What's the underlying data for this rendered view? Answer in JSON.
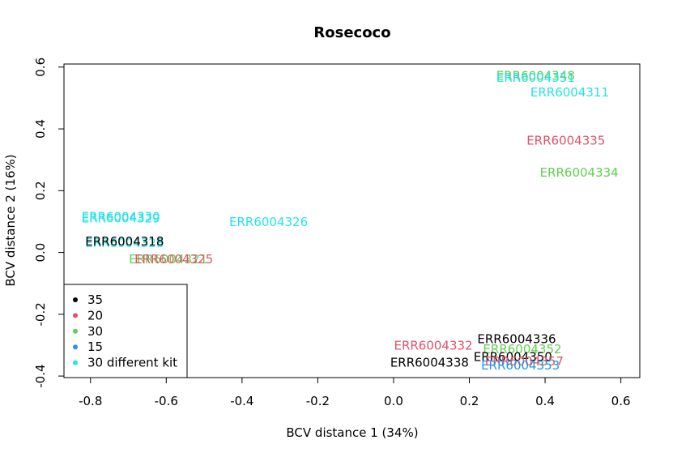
{
  "chart_data": {
    "type": "scatter",
    "title": "Rosecoco",
    "xlabel": "BCV distance 1 (34%)",
    "ylabel": "BCV distance 2 (16%)",
    "xlim": [
      -0.87,
      0.65
    ],
    "ylim": [
      -0.405,
      0.61
    ],
    "xticks": [
      "-0.8",
      "-0.6",
      "-0.4",
      "-0.2",
      "0.0",
      "0.2",
      "0.4",
      "0.6"
    ],
    "xtick_values": [
      -0.8,
      -0.6,
      -0.4,
      -0.2,
      0.0,
      0.2,
      0.4,
      0.6
    ],
    "yticks": [
      "-0.4",
      "-0.2",
      "0.0",
      "0.2",
      "0.4",
      "0.6"
    ],
    "ytick_values": [
      -0.4,
      -0.2,
      0.0,
      0.2,
      0.4,
      0.6
    ],
    "grid": false,
    "legend_position": "bottom-left",
    "legend": [
      {
        "label": "35",
        "color": "#000000"
      },
      {
        "label": "20",
        "color": "#DF536B"
      },
      {
        "label": "30",
        "color": "#61D04F"
      },
      {
        "label": "15",
        "color": "#2297E6"
      },
      {
        "label": "30 different kit",
        "color": "#28E2E5"
      }
    ],
    "points": [
      {
        "label": "ERR6004348",
        "x": 0.375,
        "y": 0.572,
        "group": "30"
      },
      {
        "label": "ERR6004351",
        "x": 0.375,
        "y": 0.565,
        "group": "30 different kit"
      },
      {
        "label": "ERR6004311",
        "x": 0.465,
        "y": 0.518,
        "group": "30 different kit"
      },
      {
        "label": "ERR6004335",
        "x": 0.455,
        "y": 0.362,
        "group": "20"
      },
      {
        "label": "ERR6004334",
        "x": 0.49,
        "y": 0.258,
        "group": "30"
      },
      {
        "label": "ERR6004330",
        "x": -0.72,
        "y": 0.116,
        "group": "30 different kit"
      },
      {
        "label": "ERR6004329",
        "x": -0.72,
        "y": 0.111,
        "group": "30 different kit"
      },
      {
        "label": "ERR6004326",
        "x": -0.33,
        "y": 0.098,
        "group": "30 different kit"
      },
      {
        "label": "ERR6004328",
        "x": -0.71,
        "y": 0.031,
        "group": "30 different kit"
      },
      {
        "label": "ERR6004318",
        "x": -0.71,
        "y": 0.036,
        "group": "35"
      },
      {
        "label": "ERR6004321",
        "x": -0.595,
        "y": -0.022,
        "group": "30"
      },
      {
        "label": "ERR6004325",
        "x": -0.58,
        "y": -0.022,
        "group": "20"
      },
      {
        "label": "ERR6004332",
        "x": 0.105,
        "y": -0.301,
        "group": "20"
      },
      {
        "label": "ERR6004336",
        "x": 0.325,
        "y": -0.28,
        "group": "35"
      },
      {
        "label": "ERR6004352",
        "x": 0.34,
        "y": -0.313,
        "group": "30"
      },
      {
        "label": "ERR6004350",
        "x": 0.315,
        "y": -0.338,
        "group": "35"
      },
      {
        "label": "ERR6004338",
        "x": 0.095,
        "y": -0.357,
        "group": "35"
      },
      {
        "label": "ERR6004357",
        "x": 0.345,
        "y": -0.353,
        "group": "20"
      },
      {
        "label": "ERR6004353",
        "x": 0.335,
        "y": -0.366,
        "group": "15"
      }
    ]
  }
}
